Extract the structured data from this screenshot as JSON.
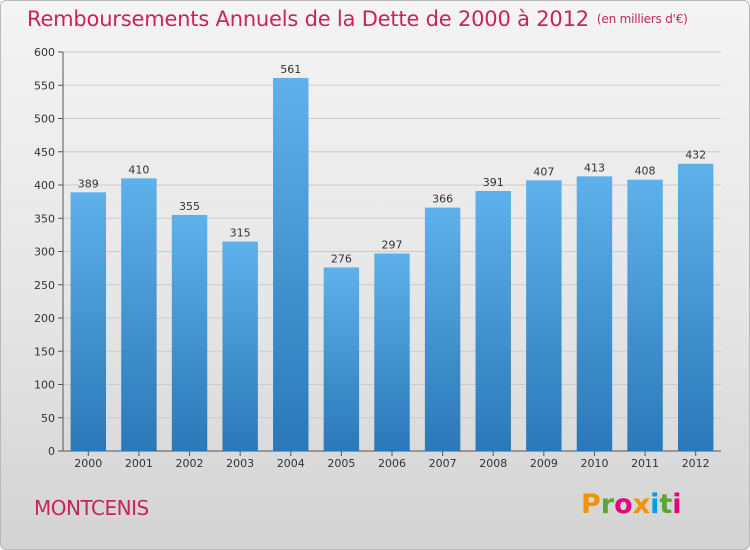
{
  "header": {
    "title": "Remboursements Annuels de la Dette de 2000 à 2012",
    "subtitle": "(en milliers d'€)"
  },
  "footer": {
    "commune": "MONTCENIS",
    "brand": "Proxiti"
  },
  "colors": {
    "title": "#c8245a",
    "bar_top": "#5eb1ea",
    "bar_bottom": "#2b78b8",
    "grid": "#cccccc",
    "brand_letters": [
      "#f39200",
      "#5ba532",
      "#e5007d",
      "#f39200",
      "#009fe3",
      "#5ba532",
      "#e5007d"
    ]
  },
  "chart_data": {
    "type": "bar",
    "title": "Remboursements Annuels de la Dette de 2000 à 2012",
    "categories": [
      "2000",
      "2001",
      "2002",
      "2003",
      "2004",
      "2005",
      "2006",
      "2007",
      "2008",
      "2009",
      "2010",
      "2011",
      "2012"
    ],
    "values": [
      389,
      410,
      355,
      315,
      561,
      276,
      297,
      366,
      391,
      407,
      413,
      408,
      432
    ],
    "ylim": [
      0,
      600
    ],
    "yticks": [
      0,
      50,
      100,
      150,
      200,
      250,
      300,
      350,
      400,
      450,
      500,
      550,
      600
    ],
    "grid": true,
    "data_labels": true
  }
}
